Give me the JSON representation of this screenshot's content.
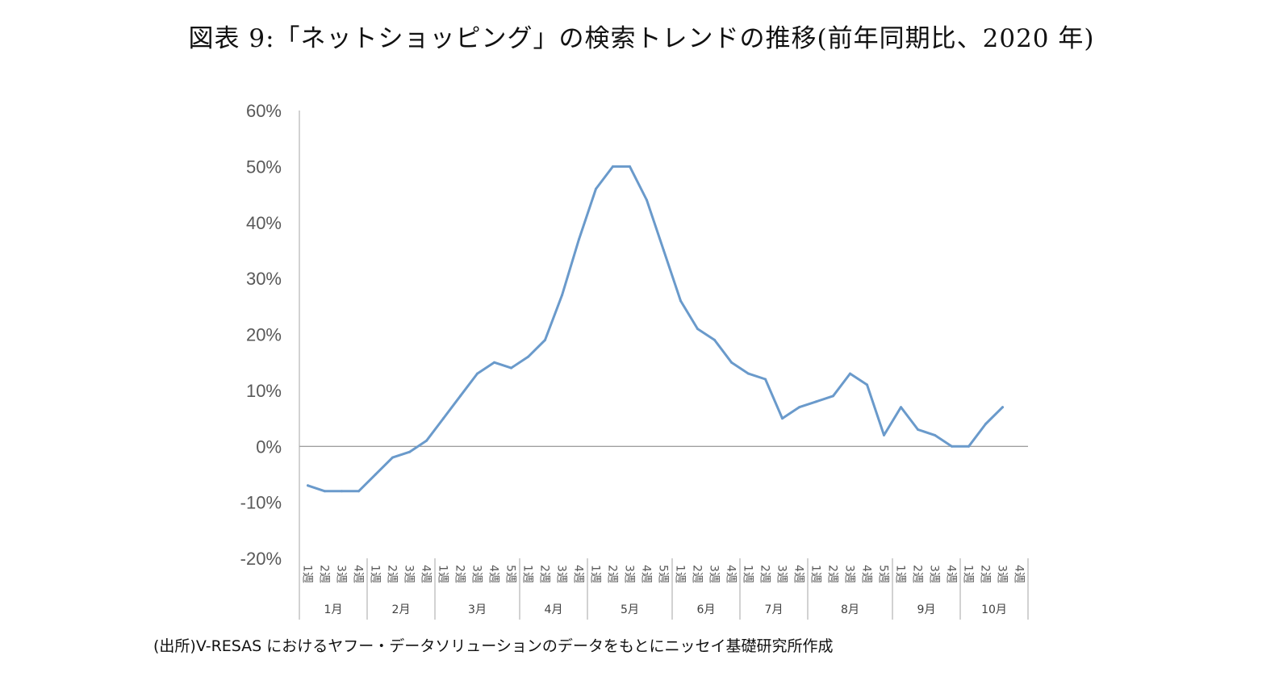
{
  "title": "図表 9:「ネットショッピング」の検索トレンドの推移(前年同期比、2020 年)",
  "source": "(出所)V-RESAS におけるヤフー・データソリューションのデータをもとにニッセイ基礎研究所作成",
  "chart_data": {
    "type": "line",
    "title": "図表 9:「ネットショッピング」の検索トレンドの推移(前年同期比、2020 年)",
    "xlabel": "",
    "ylabel": "",
    "ylim": [
      -20,
      60
    ],
    "ytick_step": 10,
    "ytick_labels": [
      "60%",
      "50%",
      "40%",
      "30%",
      "20%",
      "10%",
      "0%",
      "-10%",
      "-20%"
    ],
    "week_suffix": "週",
    "line_color": "#6a9acb",
    "months": [
      {
        "label": "1月",
        "weeks": [
          "1",
          "2",
          "3",
          "4"
        ]
      },
      {
        "label": "2月",
        "weeks": [
          "1",
          "2",
          "3",
          "4"
        ]
      },
      {
        "label": "3月",
        "weeks": [
          "1",
          "2",
          "3",
          "4",
          "5"
        ]
      },
      {
        "label": "4月",
        "weeks": [
          "1",
          "2",
          "3",
          "4"
        ]
      },
      {
        "label": "5月",
        "weeks": [
          "1",
          "2",
          "3",
          "4",
          "5"
        ]
      },
      {
        "label": "6月",
        "weeks": [
          "1",
          "2",
          "3",
          "4"
        ]
      },
      {
        "label": "7月",
        "weeks": [
          "1",
          "2",
          "3",
          "4"
        ]
      },
      {
        "label": "8月",
        "weeks": [
          "1",
          "2",
          "3",
          "4",
          "5"
        ]
      },
      {
        "label": "9月",
        "weeks": [
          "1",
          "2",
          "3",
          "4"
        ]
      },
      {
        "label": "10月",
        "weeks": [
          "1",
          "2",
          "3",
          "4"
        ]
      }
    ],
    "series": [
      {
        "values": [
          -7,
          -8,
          -8,
          -8,
          -5,
          -2,
          -1,
          1,
          5,
          9,
          13,
          15,
          14,
          16,
          19,
          27,
          37,
          46,
          50,
          50,
          44,
          35,
          26,
          21,
          19,
          15,
          13,
          12,
          5,
          7,
          8,
          9,
          13,
          11,
          2,
          7,
          3,
          2,
          0,
          0,
          4,
          7
        ]
      }
    ]
  }
}
